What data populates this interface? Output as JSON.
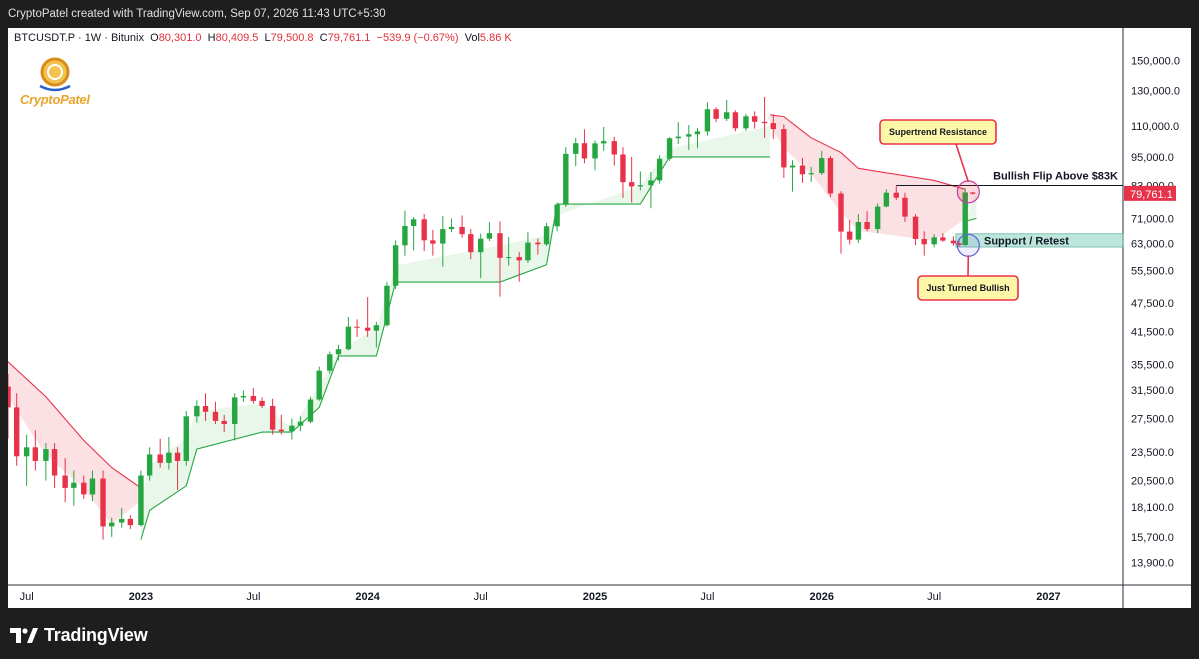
{
  "header": {
    "attribution": "CryptoPatel created with TradingView.com, Sep 07, 2026 11:43 UTC+5:30"
  },
  "legend": {
    "symbol": "BTCUSDT.P · 1W · Bitunix",
    "o_label": "O",
    "o_value": "80,301.0",
    "h_label": "H",
    "h_value": "80,409.5",
    "l_label": "L",
    "l_value": "79,500.8",
    "c_label": "C",
    "c_value": "79,761.1",
    "change": "−539.9 (−0.67%)",
    "vol_label": "Vol",
    "vol_value": "5.86 K"
  },
  "logo": {
    "text": "CryptoPatel"
  },
  "footer": {
    "brand": "TradingView"
  },
  "colors": {
    "up": "#26a641",
    "down": "#e8324a",
    "bull_band_fill": "#e6f6e8",
    "bear_band_fill": "#fbdde1",
    "support_zone": "#b2e3d8",
    "callout_fill": "#fff7a8",
    "callout_border": "#e8324a"
  },
  "chart_data": {
    "type": "candlestick",
    "log_scale": true,
    "ylim": [
      12500,
      175000
    ],
    "y_ticks": [
      "150,000.0",
      "130,000.0",
      "110,000.0",
      "95,000.0",
      "83,000.0",
      "71,000.0",
      "63,000.0",
      "55,500.0",
      "47,500.0",
      "41,500.0",
      "35,500.0",
      "31,500.0",
      "27,500.0",
      "23,500.0",
      "20,500.0",
      "18,100.0",
      "15,700.0",
      "13,900.0"
    ],
    "x_ticks": [
      "Jul",
      "2023",
      "Jul",
      "2024",
      "Jul",
      "2025",
      "Jul",
      "2026",
      "Jul",
      "2027"
    ],
    "current_price_label": "79,761.1",
    "supertrend": {
      "segments": [
        {
          "trend": "bear",
          "points": [
            [
              "2022-06-01",
              36000
            ],
            [
              "2022-08-01",
              30500
            ],
            [
              "2022-10-01",
              24800
            ],
            [
              "2022-11-15",
              21800
            ],
            [
              "2023-01-01",
              19800
            ]
          ]
        },
        {
          "trend": "bull",
          "points": [
            [
              "2023-01-01",
              15500
            ],
            [
              "2023-01-15",
              17800
            ],
            [
              "2023-03-15",
              20000
            ],
            [
              "2023-04-01",
              23800
            ],
            [
              "2023-07-15",
              25800
            ],
            [
              "2023-09-01",
              25800
            ],
            [
              "2023-10-15",
              29000
            ],
            [
              "2023-11-15",
              37000
            ],
            [
              "2024-01-15",
              37000
            ],
            [
              "2024-02-15",
              52500
            ],
            [
              "2024-08-01",
              52500
            ],
            [
              "2024-10-15",
              57000
            ],
            [
              "2024-11-01",
              76000
            ],
            [
              "2025-03-15",
              76000
            ],
            [
              "2025-05-01",
              95000
            ],
            [
              "2025-10-10",
              95000
            ]
          ]
        },
        {
          "trend": "bear",
          "points": [
            [
              "2025-10-10",
              116000
            ],
            [
              "2025-11-01",
              115000
            ],
            [
              "2025-12-15",
              104000
            ],
            [
              "2026-02-01",
              97000
            ],
            [
              "2026-03-01",
              90000
            ],
            [
              "2026-07-01",
              85000
            ],
            [
              "2026-08-20",
              81500
            ]
          ]
        },
        {
          "trend": "bull",
          "points": [
            [
              "2026-08-20",
              70000
            ],
            [
              "2026-09-07",
              71000
            ]
          ]
        }
      ]
    },
    "support_zone": {
      "label": "Support / Retest",
      "low": 62000,
      "high": 66000
    },
    "resistance_line": {
      "label": "Bullish Flip Above $83K",
      "price": 83000,
      "from": "2026-05-01"
    },
    "annotations": [
      {
        "label": "Supertrend Resistance",
        "target": [
          "2026-08-25",
          80500
        ],
        "marker": "circle"
      },
      {
        "label": "Just Turned Bullish",
        "target": [
          "2026-08-25",
          62500
        ],
        "marker": "circle"
      }
    ],
    "candles": [
      [
        "2022-06-01",
        32000,
        34000,
        25000,
        29000
      ],
      [
        "2022-06-15",
        29000,
        31000,
        22000,
        23000
      ],
      [
        "2022-07-01",
        23000,
        25500,
        20000,
        24000
      ],
      [
        "2022-07-15",
        24000,
        26000,
        21500,
        22500
      ],
      [
        "2022-08-01",
        22500,
        24500,
        20500,
        23800
      ],
      [
        "2022-08-15",
        23800,
        24500,
        19800,
        21000
      ],
      [
        "2022-09-01",
        21000,
        22800,
        18500,
        19800
      ],
      [
        "2022-09-15",
        19800,
        21500,
        18200,
        20300
      ],
      [
        "2022-10-01",
        20300,
        21000,
        18800,
        19200
      ],
      [
        "2022-10-15",
        19200,
        21500,
        18600,
        20700
      ],
      [
        "2022-11-01",
        20700,
        21500,
        15500,
        16500
      ],
      [
        "2022-11-15",
        16500,
        17200,
        15700,
        16800
      ],
      [
        "2022-12-01",
        16800,
        18000,
        16400,
        17100
      ],
      [
        "2022-12-15",
        17100,
        17400,
        16300,
        16600
      ],
      [
        "2023-01-01",
        16600,
        21500,
        16500,
        21000
      ],
      [
        "2023-01-15",
        21000,
        24000,
        20500,
        23200
      ],
      [
        "2023-02-01",
        23200,
        25000,
        21800,
        22300
      ],
      [
        "2023-02-15",
        22300,
        25200,
        21600,
        23400
      ],
      [
        "2023-03-01",
        23400,
        24000,
        19600,
        22500
      ],
      [
        "2023-03-15",
        22500,
        28500,
        22000,
        27800
      ],
      [
        "2023-04-01",
        27800,
        30000,
        27000,
        29200
      ],
      [
        "2023-04-15",
        29200,
        31000,
        27200,
        28400
      ],
      [
        "2023-05-01",
        28400,
        29800,
        26800,
        27200
      ],
      [
        "2023-05-15",
        27200,
        28000,
        25800,
        26800
      ],
      [
        "2023-06-01",
        26800,
        31000,
        24800,
        30400
      ],
      [
        "2023-06-15",
        30400,
        31400,
        29800,
        30600
      ],
      [
        "2023-07-01",
        30600,
        31800,
        29500,
        29900
      ],
      [
        "2023-07-15",
        29900,
        30400,
        28900,
        29200
      ],
      [
        "2023-08-01",
        29200,
        30200,
        25500,
        26100
      ],
      [
        "2023-08-15",
        26100,
        28000,
        25500,
        25900
      ],
      [
        "2023-09-01",
        25900,
        27500,
        24900,
        26600
      ],
      [
        "2023-09-15",
        26600,
        27800,
        25900,
        27100
      ],
      [
        "2023-10-01",
        27100,
        30500,
        26900,
        30100
      ],
      [
        "2023-10-15",
        30100,
        35200,
        29900,
        34500
      ],
      [
        "2023-11-01",
        34500,
        37800,
        34000,
        37300
      ],
      [
        "2023-11-15",
        37300,
        39000,
        36200,
        38200
      ],
      [
        "2023-12-01",
        38200,
        44500,
        38000,
        42500
      ],
      [
        "2023-12-15",
        42500,
        44000,
        40500,
        42300
      ],
      [
        "2024-01-01",
        42300,
        48900,
        40500,
        41700
      ],
      [
        "2024-01-15",
        41700,
        43500,
        38500,
        42800
      ],
      [
        "2024-02-01",
        42800,
        52500,
        42500,
        51600
      ],
      [
        "2024-02-15",
        51600,
        64000,
        50800,
        62500
      ],
      [
        "2024-03-01",
        62500,
        73700,
        59500,
        68500
      ],
      [
        "2024-03-15",
        68500,
        71500,
        61000,
        70700
      ],
      [
        "2024-04-01",
        70700,
        72500,
        60800,
        64000
      ],
      [
        "2024-04-15",
        64000,
        67200,
        59500,
        63000
      ],
      [
        "2024-05-01",
        63000,
        71800,
        56500,
        67500
      ],
      [
        "2024-05-15",
        67500,
        71000,
        66500,
        68200
      ],
      [
        "2024-06-01",
        68200,
        72000,
        64800,
        65900
      ],
      [
        "2024-06-15",
        65900,
        67500,
        58500,
        60500
      ],
      [
        "2024-07-01",
        60500,
        66000,
        53500,
        64500
      ],
      [
        "2024-07-15",
        64500,
        69800,
        63800,
        66200
      ],
      [
        "2024-08-01",
        66200,
        70000,
        49000,
        58900
      ],
      [
        "2024-08-15",
        58900,
        65000,
        56800,
        59100
      ],
      [
        "2024-09-01",
        59100,
        60500,
        52600,
        58200
      ],
      [
        "2024-09-15",
        58200,
        66500,
        57500,
        63300
      ],
      [
        "2024-10-01",
        63300,
        64500,
        59800,
        62800
      ],
      [
        "2024-10-15",
        62800,
        69500,
        62300,
        68400
      ],
      [
        "2024-11-01",
        68400,
        76500,
        66800,
        75800
      ],
      [
        "2024-11-15",
        75800,
        99500,
        75000,
        96400
      ],
      [
        "2024-12-01",
        96400,
        104000,
        91000,
        101400
      ],
      [
        "2024-12-15",
        101400,
        108300,
        92200,
        94300
      ],
      [
        "2025-01-01",
        94300,
        102700,
        89200,
        101300
      ],
      [
        "2025-01-15",
        101300,
        109500,
        97800,
        102400
      ],
      [
        "2025-02-01",
        102400,
        104500,
        91200,
        96100
      ],
      [
        "2025-02-15",
        96100,
        99500,
        78200,
        84300
      ],
      [
        "2025-03-01",
        84300,
        95000,
        76600,
        82600
      ],
      [
        "2025-03-15",
        82600,
        88700,
        81100,
        83100
      ],
      [
        "2025-04-01",
        83100,
        88500,
        74500,
        85000
      ],
      [
        "2025-04-15",
        85000,
        95800,
        83700,
        94200
      ],
      [
        "2025-05-01",
        94200,
        104300,
        93300,
        103800
      ],
      [
        "2025-05-15",
        103800,
        112000,
        101000,
        104600
      ],
      [
        "2025-06-01",
        104600,
        110500,
        98200,
        105800
      ],
      [
        "2025-06-15",
        105800,
        108900,
        99000,
        107200
      ],
      [
        "2025-07-01",
        107200,
        123000,
        105100,
        119100
      ],
      [
        "2025-07-15",
        119100,
        120200,
        112000,
        113800
      ],
      [
        "2025-08-01",
        113800,
        124500,
        112600,
        117400
      ],
      [
        "2025-08-15",
        117400,
        118500,
        107300,
        108800
      ],
      [
        "2025-09-01",
        108800,
        116500,
        107400,
        115200
      ],
      [
        "2025-09-15",
        115200,
        117900,
        108600,
        112200
      ],
      [
        "2025-10-01",
        112200,
        126200,
        104000,
        111500
      ],
      [
        "2025-10-15",
        111500,
        116200,
        103500,
        108400
      ],
      [
        "2025-11-01",
        108400,
        110800,
        86000,
        90400
      ],
      [
        "2025-11-15",
        90400,
        93500,
        80600,
        91200
      ],
      [
        "2025-12-01",
        91200,
        94600,
        84000,
        87500
      ],
      [
        "2025-12-15",
        87500,
        90600,
        84400,
        88000
      ],
      [
        "2026-01-01",
        88000,
        97800,
        87200,
        94500
      ],
      [
        "2026-01-15",
        94500,
        95500,
        78500,
        79900
      ],
      [
        "2026-02-01",
        79900,
        80800,
        60100,
        66700
      ],
      [
        "2026-02-15",
        66700,
        70500,
        62800,
        64200
      ],
      [
        "2026-03-01",
        64200,
        72500,
        63200,
        69800
      ],
      [
        "2026-03-15",
        69800,
        73500,
        66800,
        67500
      ],
      [
        "2026-04-01",
        67500,
        76200,
        66200,
        75100
      ],
      [
        "2026-04-15",
        75100,
        81500,
        74800,
        80200
      ],
      [
        "2026-05-01",
        80200,
        82900,
        77500,
        78300
      ],
      [
        "2026-05-15",
        78300,
        80200,
        69800,
        71600
      ],
      [
        "2026-06-01",
        71600,
        72400,
        62500,
        64400
      ],
      [
        "2026-06-15",
        64400,
        66800,
        59500,
        62800
      ],
      [
        "2026-07-01",
        62800,
        65900,
        61900,
        64900
      ],
      [
        "2026-07-15",
        64900,
        66200,
        63600,
        63900
      ],
      [
        "2026-08-01",
        63900,
        65200,
        62400,
        63100
      ],
      [
        "2026-08-10",
        63100,
        64300,
        62100,
        62600
      ],
      [
        "2026-08-20",
        62600,
        81800,
        62400,
        80300
      ],
      [
        "2026-09-01",
        80300,
        80400,
        79500,
        79800
      ]
    ]
  }
}
